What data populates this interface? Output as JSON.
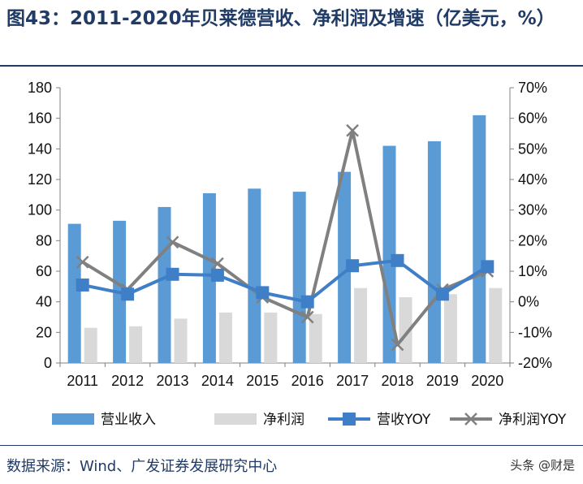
{
  "title": "图43：2011-2020年贝莱德营收、净利润及增速（亿美元，%）",
  "source": "数据来源：Wind、广发证券发展研究中心",
  "watermark": "头条 @财是",
  "colors": {
    "revenue": "#5b9bd5",
    "net_profit": "#d9d9d9",
    "revenue_yoy": "#3f7fc8",
    "net_profit_yoy": "#808080",
    "negative_tick": "#e02020",
    "title": "#1f3b66"
  },
  "chart_data": {
    "type": "bar",
    "categories": [
      "2011",
      "2012",
      "2013",
      "2014",
      "2015",
      "2016",
      "2017",
      "2018",
      "2019",
      "2020"
    ],
    "series": [
      {
        "name": "营业收入",
        "type": "bar",
        "axis": "left",
        "values": [
          91,
          93,
          102,
          111,
          114,
          112,
          125,
          142,
          145,
          162
        ]
      },
      {
        "name": "净利润",
        "type": "bar",
        "axis": "left",
        "values": [
          23,
          24,
          29,
          33,
          33,
          32,
          49,
          43,
          45,
          49
        ]
      },
      {
        "name": "营收YOY",
        "type": "line",
        "axis": "right",
        "marker": "square",
        "values": [
          5.5,
          2.5,
          9.0,
          8.7,
          3.0,
          0.0,
          11.8,
          13.5,
          2.5,
          11.5
        ]
      },
      {
        "name": "净利润YOY",
        "type": "line",
        "axis": "right",
        "marker": "x",
        "values": [
          13.0,
          4.0,
          19.5,
          12.5,
          1.5,
          -5.0,
          56.0,
          -14.0,
          4.0,
          10.0
        ]
      }
    ],
    "left_axis": {
      "min": 0,
      "max": 180,
      "ticks": [
        "0",
        "20",
        "40",
        "60",
        "80",
        "100",
        "120",
        "140",
        "160",
        "180"
      ]
    },
    "right_axis": {
      "min": -20,
      "max": 70,
      "ticks": [
        "-20%",
        "-10%",
        "0%",
        "10%",
        "20%",
        "30%",
        "40%",
        "50%",
        "60%",
        "70%"
      ]
    },
    "legend": [
      "营业收入",
      "净利润",
      "营收YOY",
      "净利润YOY"
    ],
    "legend_position": "bottom",
    "grid": false
  }
}
